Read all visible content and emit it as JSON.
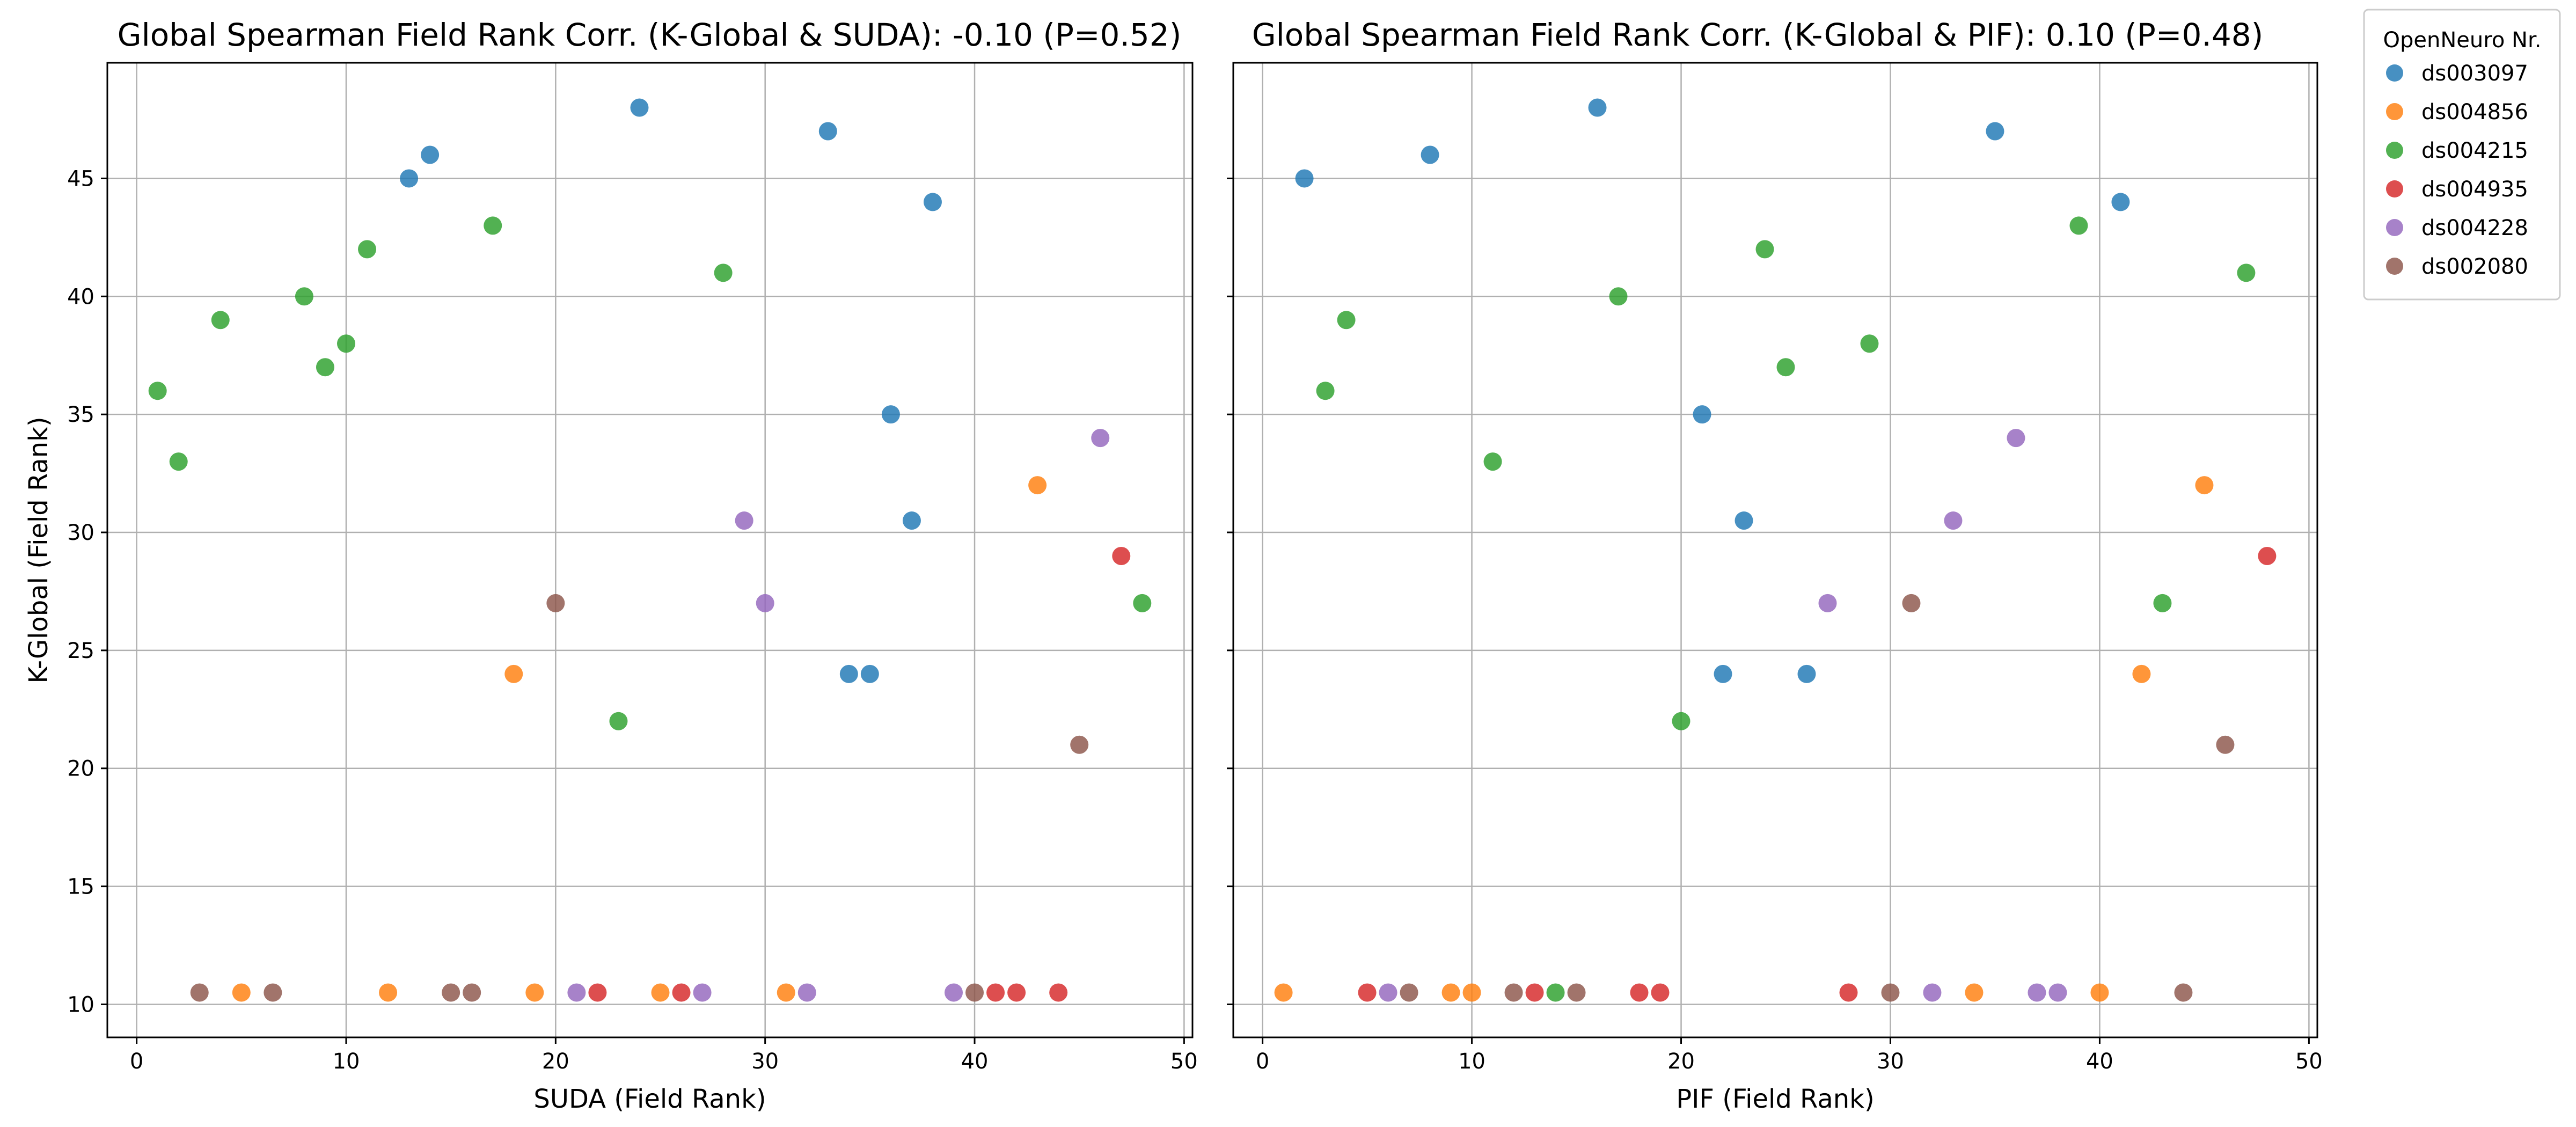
{
  "legend": {
    "title": "OpenNeuro Nr.",
    "entries": [
      {
        "name": "ds003097",
        "color": "#1f77b4"
      },
      {
        "name": "ds004856",
        "color": "#ff7f0e"
      },
      {
        "name": "ds004215",
        "color": "#2ca02c"
      },
      {
        "name": "ds004935",
        "color": "#d62728"
      },
      {
        "name": "ds004228",
        "color": "#9467bd"
      },
      {
        "name": "ds002080",
        "color": "#8c564b"
      }
    ]
  },
  "chart_data": [
    {
      "type": "scatter",
      "title": "Global Spearman Field Rank Corr. (K-Global & SUDA): -0.10 (P=0.52)",
      "xlabel": "SUDA (Field Rank)",
      "ylabel": "K-Global (Field Rank)",
      "xlim": [
        -1.4,
        50.4
      ],
      "ylim": [
        8.6,
        49.9
      ],
      "xticks": [
        0,
        10,
        20,
        30,
        40,
        50
      ],
      "yticks": [
        10,
        15,
        20,
        25,
        30,
        35,
        40,
        45
      ],
      "grid": true,
      "series": [
        {
          "name": "ds003097",
          "points": [
            [
              13,
              45
            ],
            [
              14,
              46
            ],
            [
              24,
              48
            ],
            [
              33,
              47
            ],
            [
              38,
              44
            ],
            [
              36,
              35
            ],
            [
              37,
              30.5
            ],
            [
              34,
              24
            ],
            [
              35,
              24
            ]
          ]
        },
        {
          "name": "ds004856",
          "points": [
            [
              5,
              10.5
            ],
            [
              12,
              10.5
            ],
            [
              18,
              24
            ],
            [
              19,
              10.5
            ],
            [
              25,
              10.5
            ],
            [
              31,
              10.5
            ],
            [
              43,
              32
            ]
          ]
        },
        {
          "name": "ds004215",
          "points": [
            [
              1,
              36
            ],
            [
              2,
              33
            ],
            [
              4,
              39
            ],
            [
              8,
              40
            ],
            [
              9,
              37
            ],
            [
              10,
              38
            ],
            [
              11,
              42
            ],
            [
              17,
              43
            ],
            [
              23,
              22
            ],
            [
              28,
              41
            ],
            [
              48,
              27
            ]
          ]
        },
        {
          "name": "ds004935",
          "points": [
            [
              22,
              10.5
            ],
            [
              26,
              10.5
            ],
            [
              41,
              10.5
            ],
            [
              42,
              10.5
            ],
            [
              44,
              10.5
            ],
            [
              47,
              29
            ]
          ]
        },
        {
          "name": "ds004228",
          "points": [
            [
              21,
              10.5
            ],
            [
              27,
              10.5
            ],
            [
              29,
              30.5
            ],
            [
              30,
              27
            ],
            [
              32,
              10.5
            ],
            [
              39,
              10.5
            ],
            [
              46,
              34
            ]
          ]
        },
        {
          "name": "ds002080",
          "points": [
            [
              3,
              10.5
            ],
            [
              6.5,
              10.5
            ],
            [
              15,
              10.5
            ],
            [
              16,
              10.5
            ],
            [
              20,
              27
            ],
            [
              40,
              10.5
            ],
            [
              45,
              21
            ]
          ]
        }
      ]
    },
    {
      "type": "scatter",
      "title": "Global Spearman Field Rank Corr. (K-Global & PIF): 0.10 (P=0.48)",
      "xlabel": "PIF (Field Rank)",
      "ylabel": "",
      "xlim": [
        -1.4,
        50.4
      ],
      "ylim": [
        8.6,
        49.9
      ],
      "xticks": [
        0,
        10,
        20,
        30,
        40,
        50
      ],
      "yticks": [
        10,
        15,
        20,
        25,
        30,
        35,
        40,
        45
      ],
      "grid": true,
      "series": [
        {
          "name": "ds003097",
          "points": [
            [
              2,
              45
            ],
            [
              8,
              46
            ],
            [
              16,
              48
            ],
            [
              21,
              35
            ],
            [
              22,
              24
            ],
            [
              23,
              30.5
            ],
            [
              26,
              24
            ],
            [
              35,
              47
            ],
            [
              41,
              44
            ]
          ]
        },
        {
          "name": "ds004856",
          "points": [
            [
              1,
              10.5
            ],
            [
              9,
              10.5
            ],
            [
              10,
              10.5
            ],
            [
              34,
              10.5
            ],
            [
              40,
              10.5
            ],
            [
              42,
              24
            ],
            [
              45,
              32
            ]
          ]
        },
        {
          "name": "ds004215",
          "points": [
            [
              3,
              36
            ],
            [
              4,
              39
            ],
            [
              11,
              33
            ],
            [
              14,
              10.5
            ],
            [
              17,
              40
            ],
            [
              20,
              22
            ],
            [
              24,
              42
            ],
            [
              25,
              37
            ],
            [
              29,
              38
            ],
            [
              39,
              43
            ],
            [
              43,
              27
            ],
            [
              47,
              41
            ]
          ]
        },
        {
          "name": "ds004935",
          "points": [
            [
              5,
              10.5
            ],
            [
              13,
              10.5
            ],
            [
              18,
              10.5
            ],
            [
              19,
              10.5
            ],
            [
              28,
              10.5
            ],
            [
              48,
              29
            ]
          ]
        },
        {
          "name": "ds004228",
          "points": [
            [
              6,
              10.5
            ],
            [
              27,
              27
            ],
            [
              32,
              10.5
            ],
            [
              33,
              30.5
            ],
            [
              36,
              34
            ],
            [
              37,
              10.5
            ],
            [
              38,
              10.5
            ]
          ]
        },
        {
          "name": "ds002080",
          "points": [
            [
              7,
              10.5
            ],
            [
              12,
              10.5
            ],
            [
              15,
              10.5
            ],
            [
              30,
              10.5
            ],
            [
              31,
              27
            ],
            [
              44,
              10.5
            ],
            [
              46,
              21
            ]
          ]
        }
      ]
    }
  ]
}
